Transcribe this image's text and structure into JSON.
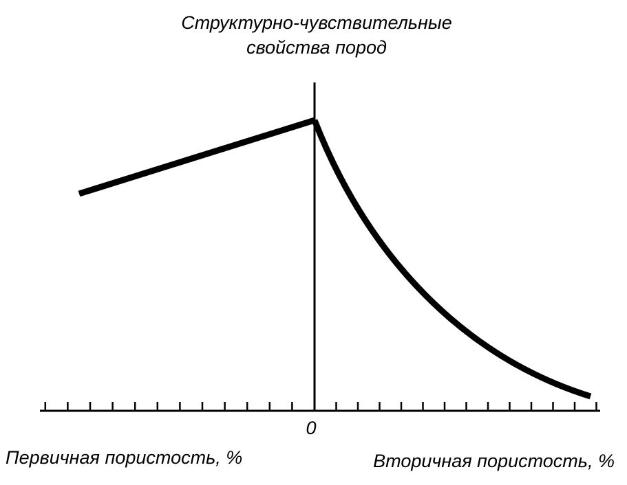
{
  "title": {
    "line1": "Структурно-чувствительные",
    "line2": "свойства пород"
  },
  "origin_label": "0",
  "x_axis": {
    "left_label": "Первичная пористость, %",
    "right_label": "Вторичная пористость, %"
  }
}
